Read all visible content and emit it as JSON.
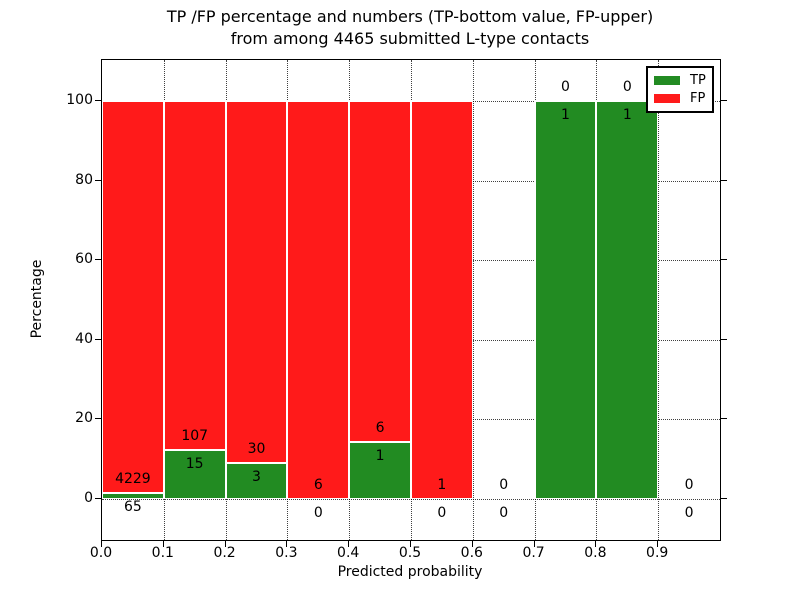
{
  "title": {
    "line1": "TP /FP percentage and numbers (TP-bottom value, FP-upper)",
    "line2": "from among 4465 submitted L-type contacts"
  },
  "legend": {
    "entries": [
      {
        "label": "TP",
        "color": "#228b22"
      },
      {
        "label": "FP",
        "color": "#ff1a1a"
      }
    ]
  },
  "chart_data": {
    "type": "bar",
    "stacked": true,
    "title": "TP /FP percentage and numbers (TP-bottom value, FP-upper) from among 4465 submitted L-type contacts",
    "title_lines": [
      "TP /FP percentage and numbers (TP-bottom value, FP-upper)",
      "from among 4465 submitted L-type contacts"
    ],
    "total_submitted_contacts": 4465,
    "xlabel": "Predicted probability",
    "ylabel": "Percentage",
    "xlim": [
      0.0,
      1.0
    ],
    "ylim": [
      -10.5,
      110.5
    ],
    "grid": "dotted",
    "legend_position": "upper right",
    "xticks": [
      "0.0",
      "0.1",
      "0.2",
      "0.3",
      "0.4",
      "0.5",
      "0.6",
      "0.7",
      "0.8",
      "0.9"
    ],
    "xtick_values": [
      0.0,
      0.1,
      0.2,
      0.3,
      0.4,
      0.5,
      0.6,
      0.7,
      0.8,
      0.9
    ],
    "yticks": [
      "0",
      "20",
      "40",
      "60",
      "80",
      "100"
    ],
    "ytick_values": [
      0,
      20,
      40,
      60,
      80,
      100
    ],
    "series": [
      {
        "name": "TP",
        "color": "#228b22"
      },
      {
        "name": "FP",
        "color": "#ff1a1a"
      }
    ],
    "bins": [
      {
        "range": [
          0.0,
          0.1
        ],
        "tp_count": 65,
        "fp_count": 4229,
        "tp_pct": 1.51,
        "fp_pct": 98.49,
        "has_bar": true
      },
      {
        "range": [
          0.1,
          0.2
        ],
        "tp_count": 15,
        "fp_count": 107,
        "tp_pct": 12.3,
        "fp_pct": 87.7,
        "has_bar": true
      },
      {
        "range": [
          0.2,
          0.3
        ],
        "tp_count": 3,
        "fp_count": 30,
        "tp_pct": 9.09,
        "fp_pct": 90.91,
        "has_bar": true
      },
      {
        "range": [
          0.3,
          0.4
        ],
        "tp_count": 0,
        "fp_count": 6,
        "tp_pct": 0,
        "fp_pct": 100,
        "has_bar": true
      },
      {
        "range": [
          0.4,
          0.5
        ],
        "tp_count": 1,
        "fp_count": 6,
        "tp_pct": 14.29,
        "fp_pct": 85.71,
        "has_bar": true
      },
      {
        "range": [
          0.5,
          0.6
        ],
        "tp_count": 0,
        "fp_count": 1,
        "tp_pct": 0,
        "fp_pct": 100,
        "has_bar": true
      },
      {
        "range": [
          0.6,
          0.7
        ],
        "tp_count": 0,
        "fp_count": 0,
        "tp_pct": 0,
        "fp_pct": 0,
        "has_bar": false
      },
      {
        "range": [
          0.7,
          0.8
        ],
        "tp_count": 1,
        "fp_count": 0,
        "tp_pct": 100,
        "fp_pct": 0,
        "has_bar": true
      },
      {
        "range": [
          0.8,
          0.9
        ],
        "tp_count": 1,
        "fp_count": 0,
        "tp_pct": 100,
        "fp_pct": 0,
        "has_bar": true
      },
      {
        "range": [
          0.9,
          1.0
        ],
        "tp_count": 0,
        "fp_count": 0,
        "tp_pct": 0,
        "fp_pct": 0,
        "has_bar": false
      }
    ]
  }
}
